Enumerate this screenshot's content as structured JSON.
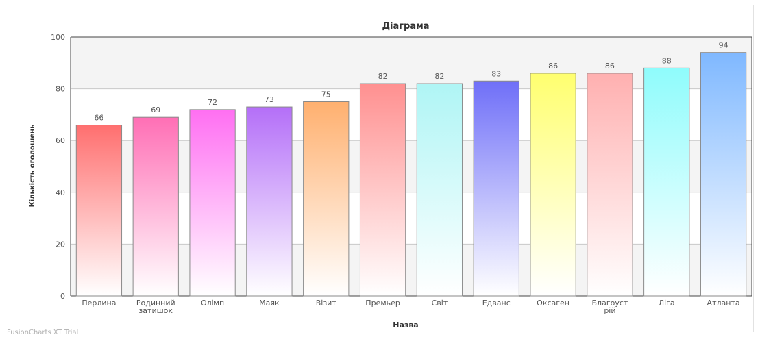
{
  "chart_data": {
    "type": "bar",
    "title": "Діаграма",
    "xlabel": "Назва",
    "ylabel": "Кількість оголошень",
    "ylim": [
      0,
      100
    ],
    "yticks": [
      0,
      20,
      40,
      60,
      80,
      100
    ],
    "grid": true,
    "categories": [
      "Перлина",
      "Родинний затишок",
      "Олімп",
      "Маяк",
      "Візит",
      "Премьер",
      "Світ",
      "Едванс",
      "Оксаген",
      "Благоустрій",
      "Ліга",
      "Атланта"
    ],
    "category_labels": [
      [
        "Перлина"
      ],
      [
        "Родинний",
        "затишок"
      ],
      [
        "Олімп"
      ],
      [
        "Маяк"
      ],
      [
        "Візит"
      ],
      [
        "Премьер"
      ],
      [
        "Світ"
      ],
      [
        "Едванс"
      ],
      [
        "Оксаген"
      ],
      [
        "Благоуст",
        "рій"
      ],
      [
        "Ліга"
      ],
      [
        "Атланта"
      ]
    ],
    "values": [
      66,
      69,
      72,
      73,
      75,
      82,
      82,
      83,
      86,
      86,
      88,
      94
    ],
    "colors": [
      "#ff6f6f",
      "#ff6fb5",
      "#ff6ff2",
      "#b46ff8",
      "#ffb06f",
      "#ff9090",
      "#aff5f5",
      "#6f6ff8",
      "#ffff6f",
      "#ffb0b0",
      "#8ffcfc",
      "#7fb8ff"
    ]
  },
  "watermark": "FusionCharts XT Trial"
}
